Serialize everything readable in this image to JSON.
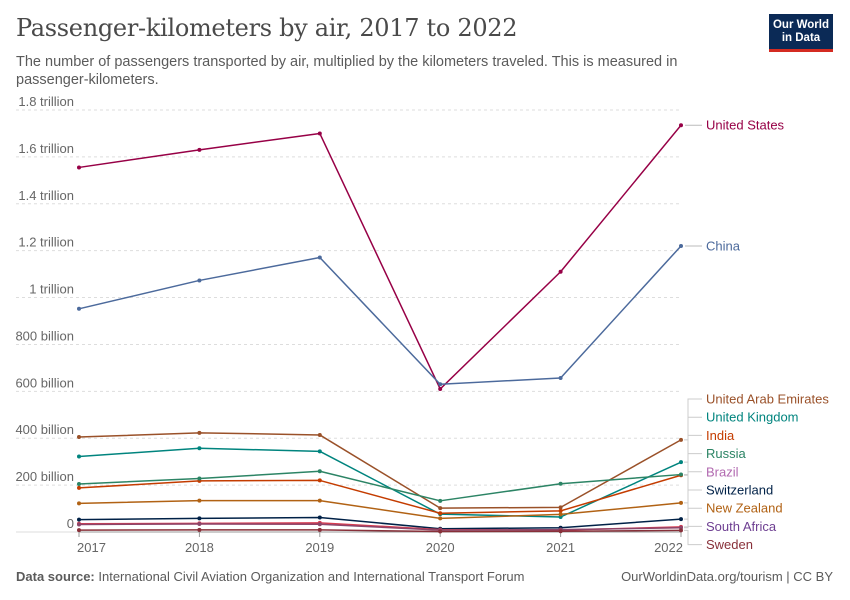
{
  "header": {
    "title": "Passenger-kilometers by air, 2017 to 2022",
    "subtitle": "The number of passengers transported by air, multiplied by the kilometers traveled. This is measured in passenger-kilometers.",
    "logo_line1": "Our World",
    "logo_line2": "in Data"
  },
  "footer": {
    "source_label": "Data source:",
    "source_text": "International Civil Aviation Organization and International Transport Forum",
    "right_text": "OurWorldinData.org/tourism | CC BY"
  },
  "chart_data": {
    "type": "line",
    "x": [
      2017,
      2018,
      2019,
      2020,
      2021,
      2022
    ],
    "ylim": [
      0,
      1800000000000
    ],
    "yticks": [
      {
        "value": 0,
        "label": "0"
      },
      {
        "value": 200000000000,
        "label": "200 billion"
      },
      {
        "value": 400000000000,
        "label": "400 billion"
      },
      {
        "value": 600000000000,
        "label": "600 billion"
      },
      {
        "value": 800000000000,
        "label": "800 billion"
      },
      {
        "value": 1000000000000,
        "label": "1 trillion"
      },
      {
        "value": 1200000000000,
        "label": "1.2 trillion"
      },
      {
        "value": 1400000000000,
        "label": "1.4 trillion"
      },
      {
        "value": 1600000000000,
        "label": "1.6 trillion"
      },
      {
        "value": 1800000000000,
        "label": "1.8 trillion"
      }
    ],
    "xticks": [
      "2017",
      "2018",
      "2019",
      "2020",
      "2021",
      "2022"
    ],
    "grid": true,
    "series": [
      {
        "name": "United States",
        "color": "#970046",
        "values": [
          1555000000000,
          1630000000000,
          1700000000000,
          610000000000,
          1110000000000,
          1735000000000
        ]
      },
      {
        "name": "China",
        "color": "#4c6a9c",
        "values": [
          952000000000,
          1073000000000,
          1171000000000,
          630000000000,
          657000000000,
          1220000000000
        ]
      },
      {
        "name": "United Arab Emirates",
        "color": "#9a5129",
        "values": [
          405000000000,
          423000000000,
          414000000000,
          102000000000,
          105000000000,
          393000000000
        ]
      },
      {
        "name": "United Kingdom",
        "color": "#00847e",
        "values": [
          322000000000,
          357000000000,
          344000000000,
          76000000000,
          64000000000,
          298000000000
        ]
      },
      {
        "name": "India",
        "color": "#c43c00",
        "values": [
          188000000000,
          218000000000,
          220000000000,
          80000000000,
          90000000000,
          242000000000
        ]
      },
      {
        "name": "Russia",
        "color": "#2c8465",
        "values": [
          205000000000,
          228000000000,
          259000000000,
          133000000000,
          206000000000,
          245000000000
        ]
      },
      {
        "name": "Brazil",
        "color": "#b16214",
        "values": [
          122000000000,
          134000000000,
          134000000000,
          58000000000,
          75000000000,
          124000000000
        ]
      },
      {
        "name": "Switzerland",
        "color": "#002147",
        "values": [
          53000000000,
          58000000000,
          62000000000,
          14000000000,
          18000000000,
          55000000000
        ]
      },
      {
        "name": "New Zealand",
        "color": "#d73c50",
        "values": [
          35000000000,
          37000000000,
          39000000000,
          10000000000,
          8000000000,
          22000000000
        ]
      },
      {
        "name": "South Africa",
        "color": "#8c4569",
        "values": [
          32000000000,
          34000000000,
          33000000000,
          8000000000,
          10000000000,
          18000000000
        ]
      },
      {
        "name": "Sweden",
        "color": "#883039",
        "values": [
          8000000000,
          9000000000,
          9000000000,
          2000000000,
          3000000000,
          7000000000
        ]
      }
    ],
    "label_colors": {
      "United States": "#970046",
      "China": "#4c6a9c",
      "United Arab Emirates": "#9a5129",
      "United Kingdom": "#00847e",
      "India": "#c43c00",
      "Russia": "#2c8465",
      "Brazil": "#b26ab0",
      "Switzerland": "#002147",
      "New Zealand": "#b16214",
      "South Africa": "#6d3e91",
      "Sweden": "#883039"
    },
    "legend_placement": "right"
  }
}
